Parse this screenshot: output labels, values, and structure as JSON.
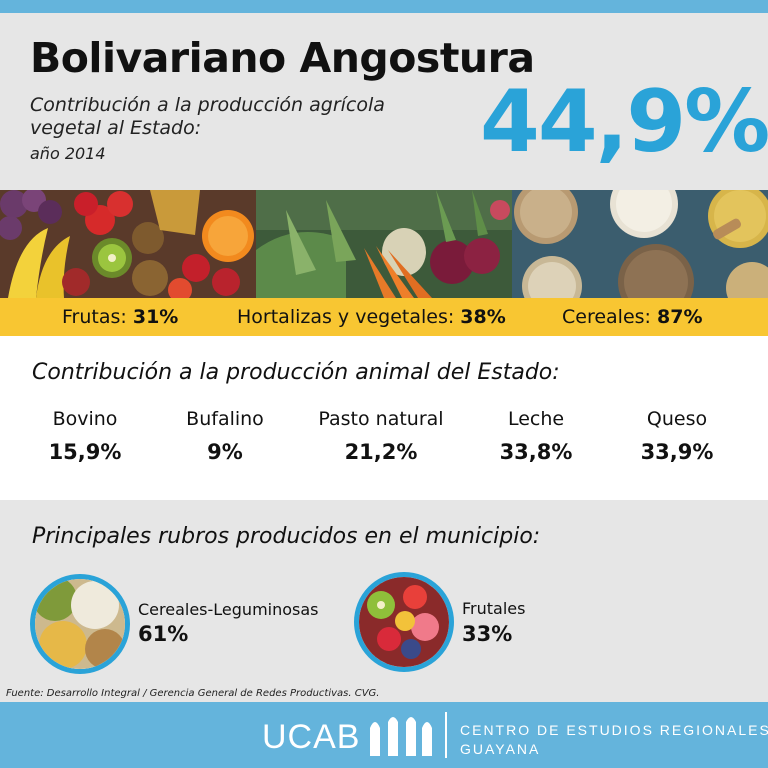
{
  "header": {
    "title": "Bolivariano Angostura",
    "subtitle": "Contribución a la producción agrícola vegetal al Estado:",
    "year": "año 2014",
    "big_percent": "44,9%"
  },
  "vegetal": [
    {
      "label": "Frutas: ",
      "value": "31%"
    },
    {
      "label": "Hortalizas y vegetales: ",
      "value": "38%"
    },
    {
      "label": "Cereales: ",
      "value": "87%"
    }
  ],
  "animal": {
    "heading": "Contribución a la producción animal del Estado:",
    "items": [
      {
        "name": "Bovino",
        "value": "15,9%"
      },
      {
        "name": "Bufalino",
        "value": "9%"
      },
      {
        "name": "Pasto natural",
        "value": "21,2%"
      },
      {
        "name": "Leche",
        "value": "33,8%"
      },
      {
        "name": "Queso",
        "value": "33,9%"
      }
    ]
  },
  "rubros": {
    "heading": "Principales rubros producidos en el municipio:",
    "items": [
      {
        "name": "Cereales-Leguminosas",
        "value": "61%"
      },
      {
        "name": "Frutales",
        "value": "33%"
      }
    ]
  },
  "source": "Fuente: Desarrollo Integral / Gerencia General de Redes Productivas. CVG.",
  "footer": {
    "logo_text": "UCAB",
    "center_line1": "CENTRO DE ESTUDIOS REGIONALES",
    "center_line2": "GUAYANA"
  },
  "colors": {
    "accent_blue": "#2aa3d8",
    "bar_blue": "#64b4dc",
    "band_yellow": "#f8c632"
  }
}
